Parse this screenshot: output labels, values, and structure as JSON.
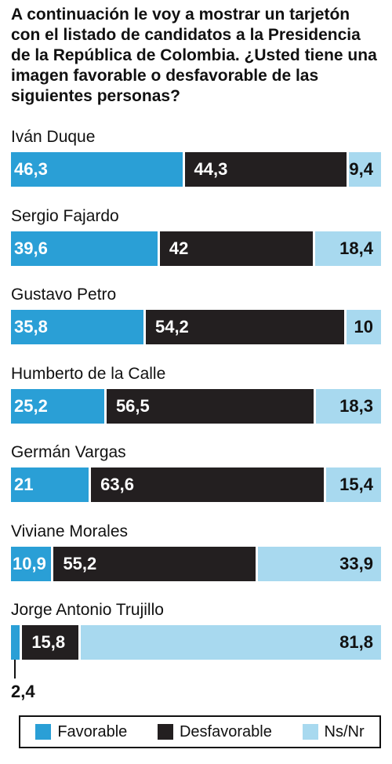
{
  "title": "A continuación le voy a mostrar un tarjetón con el listado de candidatos a la Presidencia de la República  de Colombia. ¿Usted tiene una imagen favorable o desfavorable de las siguientes personas?",
  "colors": {
    "favorable": "#2a9fd6",
    "desfavorable": "#231f20",
    "ns": "#a8d9ef"
  },
  "legend": {
    "favorable": "Favorable",
    "desfavorable": "Desfavorable",
    "ns": "Ns/Nr"
  },
  "chart_data": {
    "type": "bar",
    "orientation": "horizontal",
    "stacked": true,
    "title": "A continuación le voy a mostrar un tarjetón con el listado de candidatos a la Presidencia de la República  de Colombia. ¿Usted tiene una imagen favorable o desfavorable de las siguientes personas?",
    "categories": [
      "Iván Duque",
      "Sergio Fajardo",
      "Gustavo Petro",
      "Humberto de la Calle",
      "Germán Vargas",
      "Viviane Morales",
      "Jorge Antonio Trujillo"
    ],
    "series": [
      {
        "name": "Favorable",
        "values": [
          46.3,
          39.6,
          35.8,
          25.2,
          21,
          10.9,
          2.4
        ],
        "labels": [
          "46,3",
          "39,6",
          "35,8",
          "25,2",
          "21",
          "10,9",
          "2,4"
        ]
      },
      {
        "name": "Desfavorable",
        "values": [
          44.3,
          42,
          54.2,
          56.5,
          63.6,
          55.2,
          15.8
        ],
        "labels": [
          "44,3",
          "42",
          "54,2",
          "56,5",
          "63,6",
          "55,2",
          "15,8"
        ]
      },
      {
        "name": "Ns/Nr",
        "values": [
          9.4,
          18.4,
          10,
          18.3,
          15.4,
          33.9,
          81.8
        ],
        "labels": [
          "9,4",
          "18,4",
          "10",
          "18,3",
          "15,4",
          "33,9",
          "81,8"
        ]
      }
    ],
    "legend_position": "bottom",
    "xlim": [
      0,
      100
    ]
  }
}
